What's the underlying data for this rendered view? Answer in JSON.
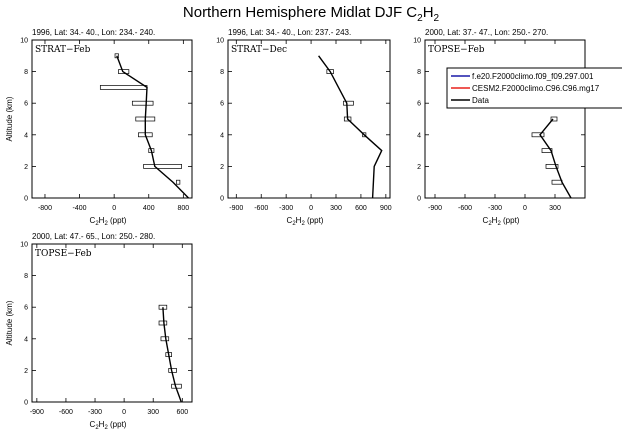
{
  "figure": {
    "title_main": "Northern Hemisphere Midlat DJF C",
    "title_sub": "2",
    "title_mid": "H",
    "title_sub2": "2"
  },
  "legend": {
    "entries": [
      {
        "label": "f.e20.F2000climo.f09_f09.297.001",
        "color": "#1a1aa8"
      },
      {
        "label": "CESM2.F2000climo.C96.C96.mg17",
        "color": "#e8201c"
      },
      {
        "label": "Data",
        "color": "#000000"
      }
    ]
  },
  "chart_data": [
    {
      "type": "line",
      "header": "1996, Lat: 34.- 40., Lon: 234.- 240.",
      "box_label": "STRAT−Feb",
      "ylabel": "Altitude (km)",
      "xlabel_parts": [
        "C",
        "2",
        "H",
        "2",
        " (ppt)"
      ],
      "xlim": [
        -950,
        900
      ],
      "ylim": [
        0,
        10
      ],
      "xticks": [
        -800,
        -400,
        0,
        400,
        800
      ],
      "xticklabels": [
        "-800",
        "-400",
        "0",
        "400",
        "800"
      ],
      "yticks": [
        0,
        2,
        4,
        6,
        8,
        10
      ],
      "profile": [
        [
          860,
          0
        ],
        [
          680,
          1
        ],
        [
          470,
          2
        ],
        [
          430,
          3
        ],
        [
          360,
          4
        ],
        [
          360,
          5
        ],
        [
          370,
          6
        ],
        [
          380,
          7
        ],
        [
          100,
          8
        ],
        [
          30,
          9
        ]
      ],
      "bars": [
        [
          740,
          1,
          20
        ],
        [
          560,
          2,
          220
        ],
        [
          430,
          3,
          30
        ],
        [
          360,
          4,
          80
        ],
        [
          360,
          5,
          110
        ],
        [
          330,
          6,
          120
        ],
        [
          110,
          7,
          270
        ],
        [
          110,
          8,
          60
        ],
        [
          30,
          9,
          20
        ]
      ]
    },
    {
      "type": "line",
      "header": "1996, Lat: 34.- 40., Lon: 237.- 243.",
      "box_label": "STRAT−Dec",
      "ylabel": "",
      "xlabel_parts": [
        "C",
        "2",
        "H",
        "2",
        " (ppt)"
      ],
      "xlim": [
        -1000,
        950
      ],
      "ylim": [
        0,
        10
      ],
      "xticks": [
        -900,
        -600,
        -300,
        0,
        300,
        600,
        900
      ],
      "xticklabels": [
        "-900",
        "-600",
        "-300",
        "0",
        "300",
        "600",
        "900"
      ],
      "yticks": [
        0,
        2,
        4,
        6,
        8,
        10
      ],
      "profile": [
        [
          740,
          0
        ],
        [
          750,
          1
        ],
        [
          760,
          2
        ],
        [
          850,
          3
        ],
        [
          640,
          4
        ],
        [
          440,
          5
        ],
        [
          430,
          6
        ],
        [
          330,
          7
        ],
        [
          230,
          8
        ],
        [
          90,
          9
        ]
      ],
      "bars": [
        [
          640,
          4,
          20
        ],
        [
          440,
          5,
          40
        ],
        [
          450,
          6,
          60
        ],
        [
          230,
          8,
          40
        ]
      ]
    },
    {
      "type": "line",
      "header": "2000, Lat: 37.- 47., Lon: 250.- 270.",
      "box_label": "TOPSE−Feb",
      "ylabel": "",
      "xlabel_parts": [
        "C",
        "2",
        "H",
        "2",
        " (ppt)"
      ],
      "xlim": [
        -1000,
        600
      ],
      "ylim": [
        0,
        10
      ],
      "xticks": [
        -900,
        -600,
        -300,
        0,
        300
      ],
      "xticklabels": [
        "-900",
        "-600",
        "-300",
        "0",
        "300"
      ],
      "yticks": [
        0,
        2,
        4,
        6,
        8,
        10
      ],
      "profile": [
        [
          460,
          0
        ],
        [
          370,
          1
        ],
        [
          310,
          2
        ],
        [
          260,
          3
        ],
        [
          150,
          4
        ],
        [
          280,
          5
        ]
      ],
      "bars": [
        [
          320,
          1,
          50
        ],
        [
          270,
          2,
          60
        ],
        [
          220,
          3,
          50
        ],
        [
          130,
          4,
          60
        ],
        [
          290,
          5,
          30
        ]
      ]
    },
    {
      "type": "line",
      "header": "2000, Lat: 47.- 65., Lon: 250.- 280.",
      "box_label": "TOPSE−Feb",
      "ylabel": "Altitude (km)",
      "xlabel_parts": [
        "C",
        "2",
        "H",
        "2",
        " (ppt)"
      ],
      "xlim": [
        -950,
        700
      ],
      "ylim": [
        0,
        10
      ],
      "xticks": [
        -900,
        -600,
        -300,
        0,
        300,
        600
      ],
      "xticklabels": [
        "-900",
        "-600",
        "-300",
        "0",
        "300",
        "600"
      ],
      "yticks": [
        0,
        2,
        4,
        6,
        8,
        10
      ],
      "profile": [
        [
          590,
          0
        ],
        [
          530,
          1
        ],
        [
          490,
          2
        ],
        [
          460,
          3
        ],
        [
          430,
          4
        ],
        [
          410,
          5
        ],
        [
          400,
          6
        ]
      ],
      "bars": [
        [
          540,
          1,
          50
        ],
        [
          500,
          2,
          40
        ],
        [
          460,
          3,
          30
        ],
        [
          420,
          4,
          40
        ],
        [
          400,
          5,
          40
        ],
        [
          400,
          6,
          40
        ]
      ]
    }
  ]
}
